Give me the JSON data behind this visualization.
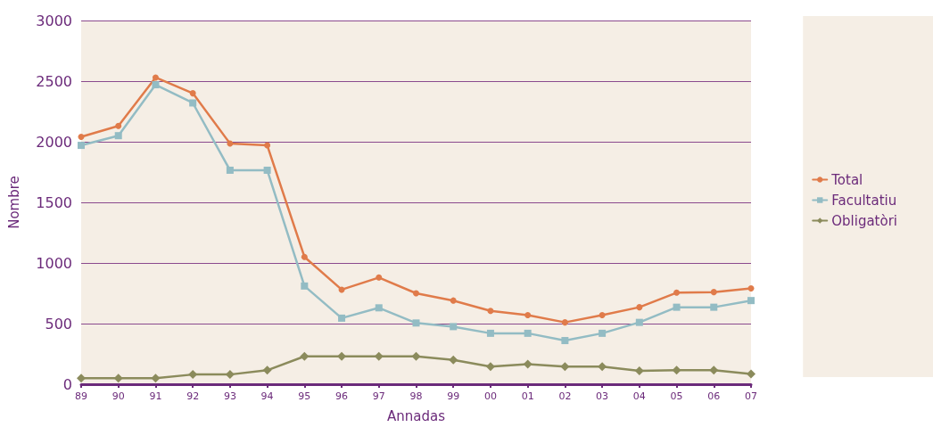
{
  "chart_data": {
    "type": "line",
    "xlabel": "Annadas",
    "ylabel": "Nombre",
    "categories": [
      "89",
      "90",
      "91",
      "92",
      "93",
      "94",
      "95",
      "96",
      "97",
      "98",
      "99",
      "00",
      "01",
      "02",
      "03",
      "04",
      "05",
      "06",
      "07"
    ],
    "series": [
      {
        "name": "Total",
        "color": "#e07b4a",
        "marker": "circle",
        "values": [
          2040,
          2130,
          2530,
          2400,
          1985,
          1970,
          1050,
          780,
          880,
          750,
          690,
          605,
          570,
          510,
          570,
          635,
          755,
          760,
          790
        ]
      },
      {
        "name": "Facultatiu",
        "color": "#93bcc4",
        "marker": "square",
        "values": [
          1970,
          2050,
          2470,
          2320,
          1765,
          1765,
          810,
          545,
          630,
          505,
          475,
          420,
          420,
          360,
          420,
          510,
          635,
          635,
          690
        ]
      },
      {
        "name": "Obligatòri",
        "color": "#8b8b5c",
        "marker": "diamond",
        "values": [
          50,
          50,
          50,
          80,
          80,
          115,
          230,
          230,
          230,
          230,
          200,
          145,
          165,
          145,
          145,
          110,
          115,
          115,
          85
        ]
      }
    ],
    "ylim": [
      0,
      3000
    ],
    "yticks": [
      0,
      500,
      1000,
      1500,
      2000,
      2500,
      3000
    ],
    "grid": "y",
    "legend": "right"
  }
}
